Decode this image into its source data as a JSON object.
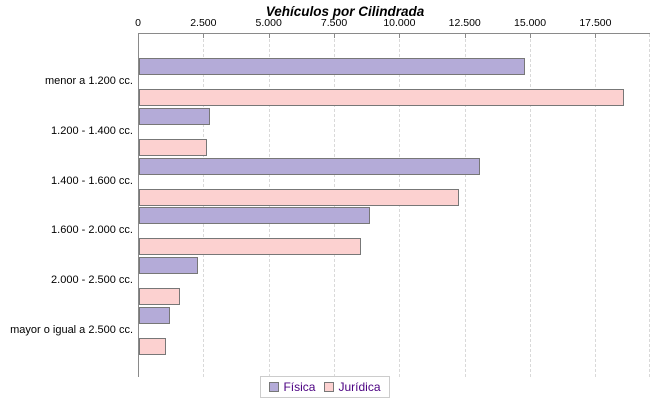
{
  "chart_data": {
    "type": "bar",
    "orientation": "horizontal",
    "title": "Vehículos por Cilindrada",
    "categories": [
      "menor a 1.200 cc.",
      "1.200 - 1.400 cc.",
      "1.400 - 1.600 cc.",
      "1.600 - 2.000 cc.",
      "2.000 - 2.500 cc.",
      "mayor o igual a 2.500 cc."
    ],
    "series": [
      {
        "name": "Física",
        "color": "#b4abd8",
        "values": [
          14750,
          2700,
          13050,
          8850,
          2250,
          1200
        ]
      },
      {
        "name": "Jurídica",
        "color": "#fcd1d0",
        "values": [
          18550,
          2600,
          12250,
          8500,
          1575,
          1050
        ]
      }
    ],
    "x_ticks": [
      {
        "value": 0,
        "label": "0"
      },
      {
        "value": 2500,
        "label": "2.500"
      },
      {
        "value": 5000,
        "label": "5.000"
      },
      {
        "value": 7500,
        "label": "7.500"
      },
      {
        "value": 10000,
        "label": "10.000"
      },
      {
        "value": 12500,
        "label": "12.500"
      },
      {
        "value": 15000,
        "label": "15.000"
      },
      {
        "value": 17500,
        "label": "17.500"
      }
    ],
    "xlim": [
      0,
      19550
    ],
    "grid": "vertical-dashed",
    "legend_position": "bottom",
    "bar_border_color": "#777777",
    "axis_color": "#8a8a8a",
    "legend_text_color": "#4b0082"
  }
}
